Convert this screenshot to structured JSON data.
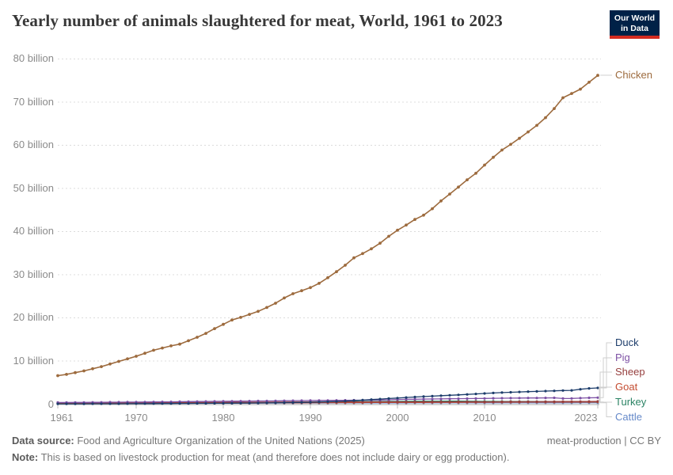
{
  "header": {
    "title": "Yearly number of animals slaughtered for meat, World, 1961 to 2023",
    "logo": {
      "line1": "Our World",
      "line2": "in Data"
    }
  },
  "chart_data": {
    "type": "line",
    "title": "Yearly number of animals slaughtered for meat, World, 1961 to 2023",
    "xlabel": "",
    "ylabel": "",
    "unit": "billion animals",
    "x": {
      "start": 1961,
      "end": 2023,
      "step": 1
    },
    "xticks": [
      "1961",
      "1970",
      "1980",
      "1990",
      "2000",
      "2010",
      "2023"
    ],
    "xtick_years": [
      1961,
      1970,
      1980,
      1990,
      2000,
      2010,
      2023
    ],
    "ylim": [
      0,
      80
    ],
    "yticks": [
      {
        "value": 80,
        "label": "80 billion"
      },
      {
        "value": 70,
        "label": "70 billion"
      },
      {
        "value": 60,
        "label": "60 billion"
      },
      {
        "value": 50,
        "label": "50 billion"
      },
      {
        "value": 40,
        "label": "40 billion"
      },
      {
        "value": 30,
        "label": "30 billion"
      },
      {
        "value": 20,
        "label": "20 billion"
      },
      {
        "value": 10,
        "label": "10 billion"
      },
      {
        "value": 0,
        "label": "0"
      }
    ],
    "grid": "horizontal-dashed",
    "legend_position": "labels-at-line-ends-right",
    "series": [
      {
        "name": "Chicken",
        "color": "#9d6b3e",
        "values": [
          6.6,
          6.9,
          7.3,
          7.7,
          8.2,
          8.7,
          9.3,
          9.9,
          10.5,
          11.1,
          11.8,
          12.5,
          13,
          13.5,
          13.9,
          14.7,
          15.5,
          16.4,
          17.5,
          18.5,
          19.5,
          20.1,
          20.8,
          21.5,
          22.4,
          23.4,
          24.6,
          25.6,
          26.3,
          27,
          28,
          29.3,
          30.7,
          32.2,
          33.9,
          34.9,
          36,
          37.3,
          38.9,
          40.3,
          41.5,
          42.8,
          43.8,
          45.3,
          47.1,
          48.7,
          50.3,
          52,
          53.5,
          55.4,
          57.2,
          58.9,
          60.2,
          61.6,
          63.1,
          64.6,
          66.4,
          68.5,
          71,
          72,
          73,
          74.6,
          76.2
        ]
      },
      {
        "name": "Duck",
        "color": "#1d3d6b",
        "values": [
          0.07,
          0.07,
          0.08,
          0.08,
          0.09,
          0.09,
          0.1,
          0.1,
          0.11,
          0.12,
          0.13,
          0.13,
          0.14,
          0.15,
          0.16,
          0.17,
          0.18,
          0.19,
          0.2,
          0.21,
          0.22,
          0.24,
          0.25,
          0.27,
          0.29,
          0.31,
          0.34,
          0.37,
          0.4,
          0.44,
          0.49,
          0.55,
          0.63,
          0.72,
          0.83,
          0.94,
          1.06,
          1.18,
          1.3,
          1.42,
          1.54,
          1.66,
          1.76,
          1.86,
          1.96,
          2.05,
          2.15,
          2.26,
          2.36,
          2.47,
          2.58,
          2.68,
          2.76,
          2.83,
          2.9,
          2.96,
          3.02,
          3.08,
          3.15,
          3.2,
          3.45,
          3.65,
          3.77
        ]
      },
      {
        "name": "Pig",
        "color": "#7e52a5",
        "values": [
          0.38,
          0.39,
          0.4,
          0.41,
          0.42,
          0.43,
          0.45,
          0.46,
          0.47,
          0.48,
          0.5,
          0.52,
          0.53,
          0.54,
          0.56,
          0.58,
          0.6,
          0.62,
          0.64,
          0.66,
          0.68,
          0.69,
          0.71,
          0.73,
          0.74,
          0.76,
          0.79,
          0.81,
          0.83,
          0.85,
          0.86,
          0.87,
          0.88,
          0.9,
          0.92,
          0.92,
          0.93,
          0.96,
          1,
          1.09,
          1.11,
          1.14,
          1.17,
          1.19,
          1.21,
          1.24,
          1.27,
          1.29,
          1.31,
          1.33,
          1.35,
          1.38,
          1.4,
          1.42,
          1.43,
          1.44,
          1.45,
          1.46,
          1.3,
          1.33,
          1.4,
          1.46,
          1.5
        ]
      },
      {
        "name": "Sheep",
        "color": "#963f3e",
        "values": [
          0.33,
          0.33,
          0.34,
          0.34,
          0.35,
          0.35,
          0.36,
          0.36,
          0.36,
          0.36,
          0.37,
          0.37,
          0.38,
          0.38,
          0.39,
          0.39,
          0.4,
          0.4,
          0.41,
          0.41,
          0.42,
          0.43,
          0.44,
          0.45,
          0.46,
          0.47,
          0.48,
          0.49,
          0.5,
          0.51,
          0.51,
          0.51,
          0.51,
          0.51,
          0.51,
          0.51,
          0.52,
          0.52,
          0.52,
          0.52,
          0.52,
          0.52,
          0.53,
          0.53,
          0.54,
          0.54,
          0.55,
          0.55,
          0.55,
          0.54,
          0.54,
          0.55,
          0.56,
          0.56,
          0.57,
          0.57,
          0.58,
          0.59,
          0.6,
          0.6,
          0.61,
          0.62,
          0.64
        ]
      },
      {
        "name": "Goat",
        "color": "#c44d32",
        "values": [
          0.17,
          0.17,
          0.18,
          0.18,
          0.18,
          0.19,
          0.19,
          0.19,
          0.2,
          0.2,
          0.2,
          0.21,
          0.21,
          0.21,
          0.22,
          0.22,
          0.23,
          0.23,
          0.24,
          0.24,
          0.25,
          0.26,
          0.26,
          0.27,
          0.28,
          0.29,
          0.3,
          0.31,
          0.32,
          0.33,
          0.34,
          0.34,
          0.35,
          0.36,
          0.37,
          0.37,
          0.38,
          0.39,
          0.39,
          0.4,
          0.4,
          0.41,
          0.41,
          0.42,
          0.42,
          0.43,
          0.43,
          0.44,
          0.44,
          0.44,
          0.45,
          0.45,
          0.46,
          0.46,
          0.47,
          0.47,
          0.48,
          0.48,
          0.49,
          0.49,
          0.5,
          0.5,
          0.51
        ]
      },
      {
        "name": "Turkey",
        "color": "#2c8465",
        "values": [
          0.13,
          0.14,
          0.14,
          0.15,
          0.16,
          0.17,
          0.18,
          0.18,
          0.19,
          0.2,
          0.21,
          0.22,
          0.23,
          0.23,
          0.24,
          0.26,
          0.27,
          0.29,
          0.31,
          0.33,
          0.35,
          0.36,
          0.38,
          0.39,
          0.41,
          0.43,
          0.46,
          0.48,
          0.5,
          0.53,
          0.55,
          0.57,
          0.58,
          0.59,
          0.6,
          0.61,
          0.62,
          0.63,
          0.64,
          0.65,
          0.66,
          0.67,
          0.67,
          0.68,
          0.68,
          0.69,
          0.69,
          0.68,
          0.66,
          0.65,
          0.64,
          0.63,
          0.62,
          0.61,
          0.6,
          0.59,
          0.57,
          0.55,
          0.53,
          0.52,
          0.51,
          0.5,
          0.5
        ]
      },
      {
        "name": "Cattle",
        "color": "#6589c9",
        "values": [
          0.17,
          0.17,
          0.18,
          0.18,
          0.18,
          0.19,
          0.19,
          0.19,
          0.2,
          0.2,
          0.2,
          0.21,
          0.21,
          0.22,
          0.23,
          0.23,
          0.23,
          0.23,
          0.23,
          0.23,
          0.23,
          0.24,
          0.24,
          0.24,
          0.25,
          0.25,
          0.25,
          0.25,
          0.26,
          0.26,
          0.26,
          0.26,
          0.27,
          0.27,
          0.27,
          0.27,
          0.27,
          0.28,
          0.28,
          0.28,
          0.28,
          0.29,
          0.29,
          0.29,
          0.29,
          0.3,
          0.3,
          0.3,
          0.3,
          0.3,
          0.3,
          0.31,
          0.31,
          0.31,
          0.31,
          0.32,
          0.32,
          0.32,
          0.32,
          0.32,
          0.33,
          0.33,
          0.33
        ]
      }
    ]
  },
  "footer": {
    "data_source_label": "Data source:",
    "data_source": " Food and Agriculture Organization of the United Nations (2025)",
    "note_label": "Note:",
    "note": " This is based on livestock production for meat (and therefore does not include dairy or egg production).",
    "credit": "meat-production | CC BY"
  }
}
